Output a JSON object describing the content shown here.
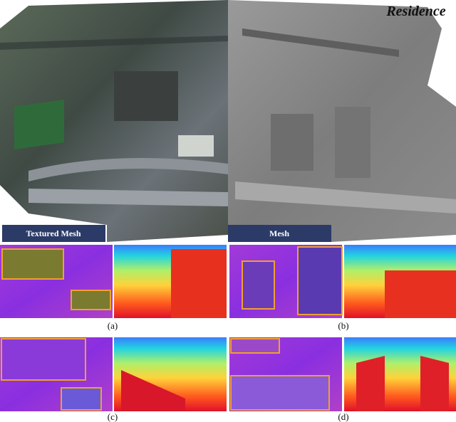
{
  "figure": {
    "title": "Residence",
    "top_panels": [
      {
        "label": "Textured Mesh"
      },
      {
        "label": "Mesh"
      }
    ],
    "subfigures": [
      {
        "label": "(a)"
      },
      {
        "label": "(b)"
      },
      {
        "label": "(c)"
      },
      {
        "label": "(d)"
      }
    ]
  }
}
